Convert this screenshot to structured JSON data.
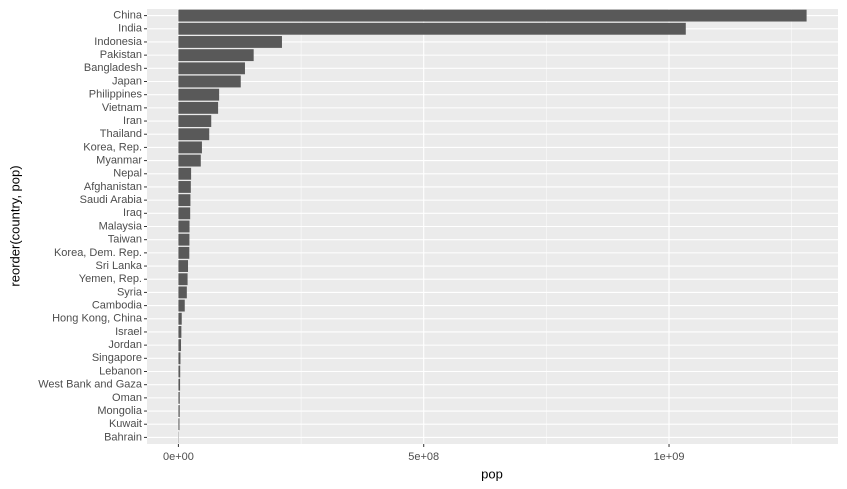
{
  "chart_data": {
    "type": "hbar",
    "categories": [
      "China",
      "India",
      "Indonesia",
      "Pakistan",
      "Bangladesh",
      "Japan",
      "Philippines",
      "Vietnam",
      "Iran",
      "Thailand",
      "Korea, Rep.",
      "Myanmar",
      "Nepal",
      "Afghanistan",
      "Saudi Arabia",
      "Iraq",
      "Malaysia",
      "Taiwan",
      "Korea, Dem. Rep.",
      "Sri Lanka",
      "Yemen, Rep.",
      "Syria",
      "Cambodia",
      "Hong Kong, China",
      "Israel",
      "Jordan",
      "Singapore",
      "Lebanon",
      "West Bank and Gaza",
      "Oman",
      "Mongolia",
      "Kuwait",
      "Bahrain"
    ],
    "values": [
      1280400000,
      1034170000,
      211060000,
      153400000,
      135660000,
      127070000,
      83000000,
      80910000,
      66910000,
      62810000,
      47970000,
      45600000,
      25870000,
      25270000,
      24500000,
      24000000,
      22660000,
      22450000,
      22220000,
      19580000,
      18700000,
      17160000,
      12930000,
      6760000,
      6030000,
      5310000,
      4200000,
      3680000,
      3390000,
      2710000,
      2670000,
      2110000,
      660000
    ],
    "color": "#595959",
    "xlim": [
      -64020000,
      1344420000
    ],
    "xticks": [
      {
        "value": 0,
        "label": "0e+00"
      },
      {
        "value": 500000000,
        "label": "5e+08"
      },
      {
        "value": 1000000000,
        "label": "1e+09"
      }
    ],
    "x_label": "pop",
    "y_label": "reorder(country, pop)",
    "grid": true
  }
}
